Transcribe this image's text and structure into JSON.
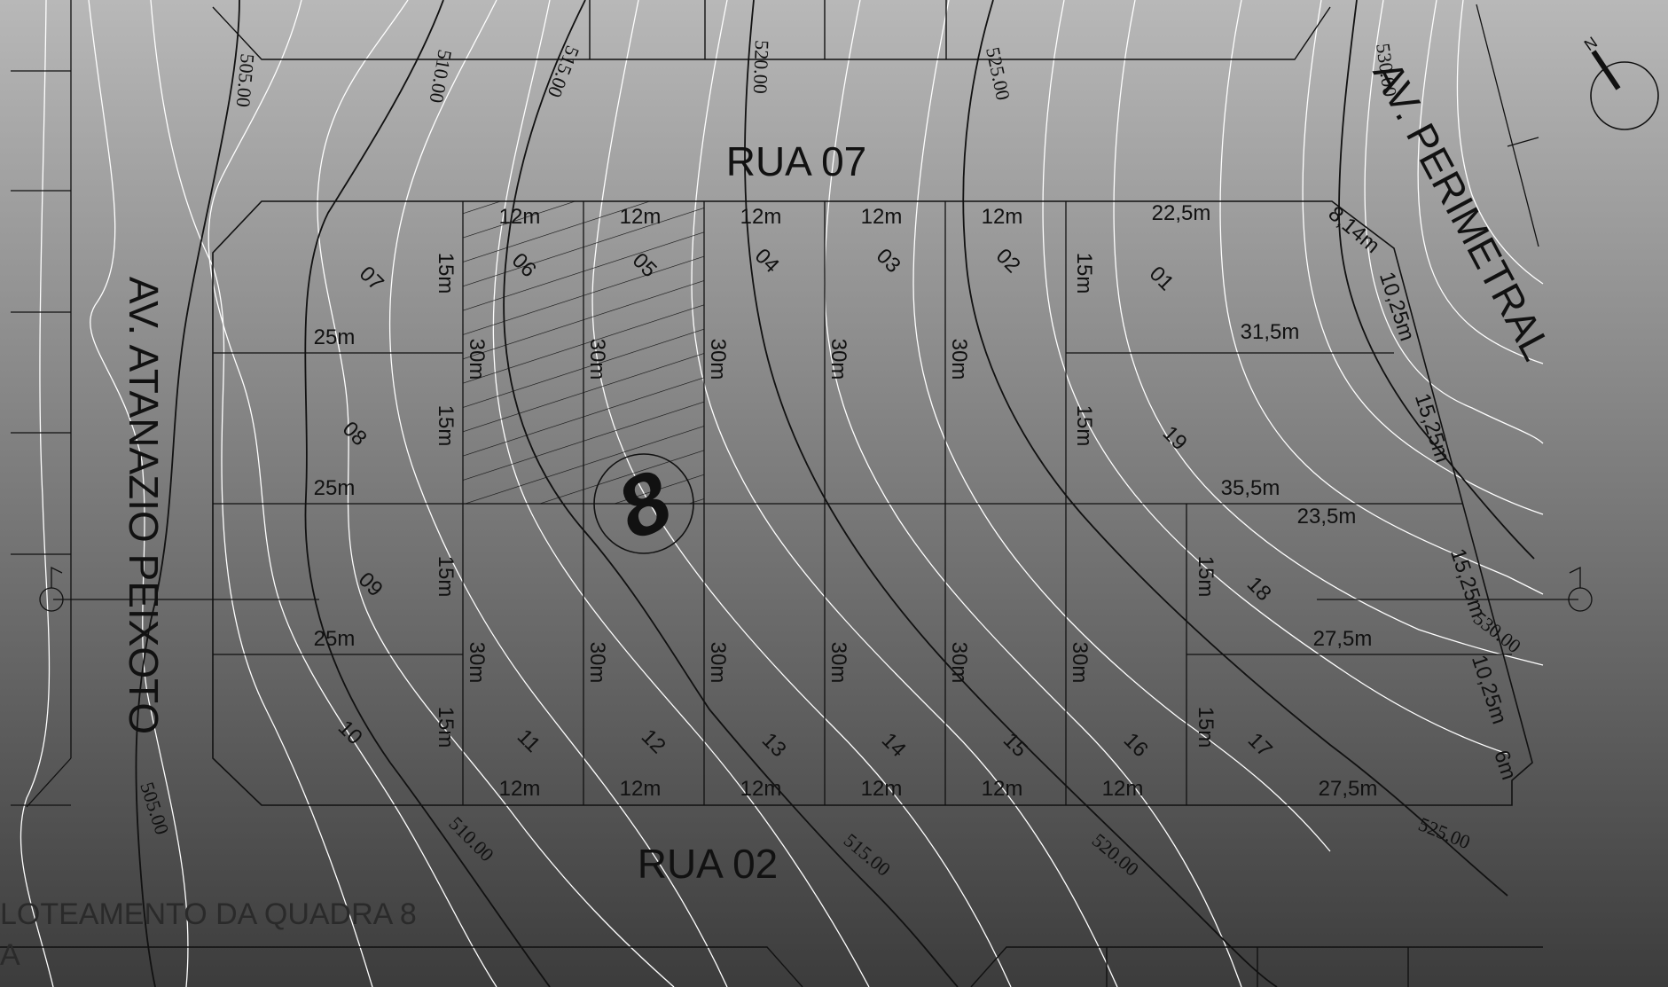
{
  "streets": {
    "north": "RUA 07",
    "south": "RUA 02",
    "west": "AV. ATANAZIO PEIXOTO",
    "east": "AV. PERIMETRAL"
  },
  "block_number": "8",
  "title_lines": [
    "LOTEAMENTO DA QUADRA 8",
    "A"
  ],
  "lots": {
    "01": "01",
    "02": "02",
    "03": "03",
    "04": "04",
    "05": "05",
    "06": "06",
    "07": "07",
    "08": "08",
    "09": "09",
    "10": "10",
    "11": "11",
    "12": "12",
    "13": "13",
    "14": "14",
    "15": "15",
    "16": "16",
    "17": "17",
    "18": "18",
    "19": "19"
  },
  "dimensions": {
    "m12": "12m",
    "m15": "15m",
    "m25": "25m",
    "m30": "30m",
    "d22_5": "22,5m",
    "d31_5": "31,5m",
    "d35_5": "35,5m",
    "d23_5": "23,5m",
    "d27_5": "27,5m",
    "d8_14": "8,14m",
    "d10_25": "10,25m",
    "d15_25": "15,25m",
    "d6": "6m"
  },
  "contours": {
    "c505": "505.00",
    "c510": "510.00",
    "c515": "515.00",
    "c520": "520.00",
    "c525": "525.00",
    "c530": "530.00"
  },
  "colors": {
    "bg_top": "#b8b8b8",
    "bg_bottom": "#3c3c3c",
    "line": "#111111",
    "contour_minor": "#ffffff"
  },
  "icons": [
    "north-arrow-icon",
    "section-marker-icon"
  ]
}
